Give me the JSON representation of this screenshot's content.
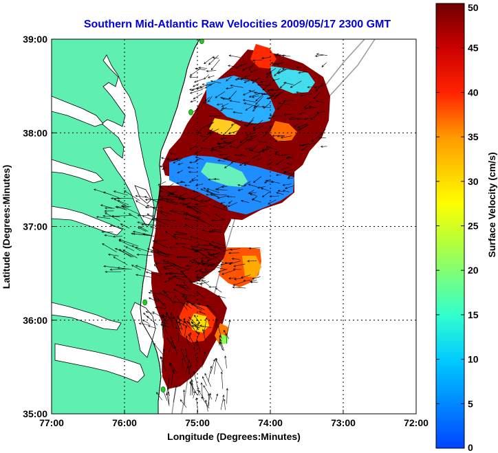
{
  "title": "Southern Mid-Atlantic Raw Velocities 2009/05/17 2300 GMT",
  "colors": {
    "title": "#0000dd",
    "land": "#5fefb0",
    "water": "#ffffff",
    "coast": "#000000",
    "grid": "#000000",
    "bathymetry": "#9a9a9a",
    "station": "#22cc22"
  },
  "map": {
    "lon_range": [
      -77,
      -72
    ],
    "lat_range": [
      35,
      39
    ],
    "x_ticks": [
      "77:00",
      "76:00",
      "75:00",
      "74:00",
      "73:00",
      "72:00"
    ],
    "y_ticks": [
      "35:00",
      "36:00",
      "37:00",
      "38:00",
      "39:00"
    ],
    "xlabel": "Longitude (Degrees:Minutes)",
    "ylabel": "Latitude (Degrees:Minutes)"
  },
  "colorbar": {
    "label": "Surface Velocity (cm/s)",
    "range": [
      0,
      50
    ],
    "ticks": [
      "0",
      "5",
      "10",
      "15",
      "20",
      "25",
      "30",
      "35",
      "40",
      "45",
      "50"
    ]
  },
  "stations": [
    {
      "lon": -74.94,
      "lat": 38.98
    },
    {
      "lon": -75.09,
      "lat": 38.22
    },
    {
      "lon": -75.72,
      "lat": 36.19
    },
    {
      "lon": -75.47,
      "lat": 35.26
    }
  ]
}
